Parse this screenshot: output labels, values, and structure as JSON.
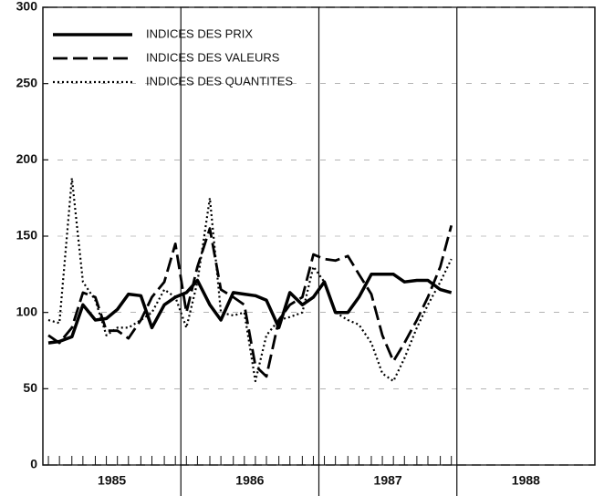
{
  "chart_data": {
    "type": "line",
    "x": [
      1985.04,
      1985.12,
      1985.21,
      1985.29,
      1985.38,
      1985.46,
      1985.54,
      1985.62,
      1985.71,
      1985.79,
      1985.88,
      1985.96,
      1986.04,
      1986.12,
      1986.21,
      1986.29,
      1986.38,
      1986.46,
      1986.54,
      1986.62,
      1986.71,
      1986.79,
      1986.88,
      1986.96,
      1987.04,
      1987.12,
      1987.21,
      1987.29,
      1987.38,
      1987.46,
      1987.54,
      1987.62,
      1987.71,
      1987.79,
      1987.88,
      1987.96
    ],
    "categories": [
      "1985",
      "1986",
      "1987",
      "1988"
    ],
    "xlim": [
      1985,
      1989
    ],
    "xticks": [
      1986,
      1987,
      1988
    ],
    "ylim": [
      0,
      300
    ],
    "yticks": [
      0,
      50,
      100,
      150,
      200,
      250,
      300
    ],
    "grid": true,
    "legend": "top-left",
    "series": [
      {
        "name": "INDICES DES PRIX",
        "color": "#000000",
        "style": "solid",
        "values": [
          80,
          81,
          84,
          105,
          95,
          96,
          102,
          112,
          111,
          90,
          105,
          110,
          113,
          121,
          105,
          95,
          113,
          112,
          111,
          108,
          90,
          113,
          105,
          110,
          120,
          100,
          100,
          110,
          125,
          125,
          125,
          120,
          121,
          121,
          115,
          113
        ]
      },
      {
        "name": "INDICES DES VALEURS",
        "color": "#000000",
        "style": "dashed",
        "values": [
          85,
          80,
          90,
          113,
          110,
          88,
          88,
          83,
          95,
          110,
          120,
          145,
          100,
          130,
          155,
          115,
          110,
          105,
          65,
          58,
          95,
          105,
          110,
          138,
          135,
          134,
          137,
          125,
          112,
          85,
          68,
          80,
          95,
          110,
          130,
          157
        ]
      },
      {
        "name": "INDICES DES QUANTITES",
        "color": "#000000",
        "style": "dotted",
        "values": [
          95,
          93,
          188,
          120,
          108,
          85,
          90,
          90,
          95,
          100,
          115,
          110,
          90,
          120,
          175,
          100,
          98,
          100,
          55,
          85,
          95,
          97,
          100,
          130,
          120,
          100,
          95,
          92,
          80,
          60,
          55,
          70,
          90,
          105,
          120,
          135
        ]
      }
    ]
  }
}
